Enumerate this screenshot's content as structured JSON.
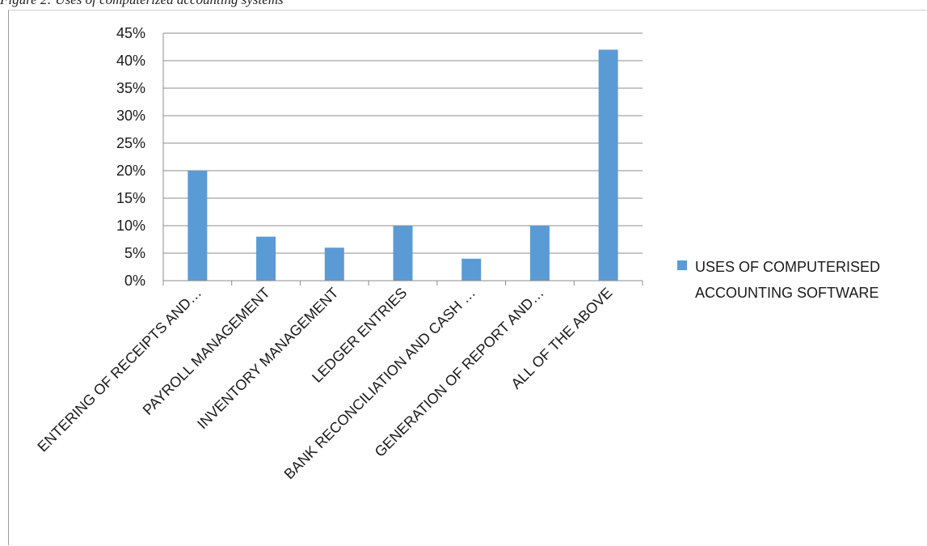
{
  "figure_caption": "Figure 2: Uses of computerized accounting systems",
  "chart_data": {
    "type": "bar",
    "categories": [
      "ENTERING OF RECEIPTS AND…",
      "PAYROLL MANAGEMENT",
      "INVENTORY MANAGEMENT",
      "LEDGER ENTRIES",
      "BANK RECONCILIATION AND CASH …",
      "GENERATION OF REPORT AND…",
      "ALL OF THE ABOVE"
    ],
    "series": [
      {
        "name": "USES OF COMPUTERISED ACCOUNTING SOFTWARE",
        "values": [
          20,
          8,
          6,
          10,
          4,
          10,
          42
        ],
        "color": "#5b9bd5"
      }
    ],
    "y_unit": "%",
    "ylim": [
      0,
      45
    ],
    "y_ticks": [
      "0%",
      "5%",
      "10%",
      "15%",
      "20%",
      "25%",
      "30%",
      "35%",
      "40%",
      "45%"
    ],
    "grid": true,
    "legend_position": "right",
    "legend_lines": [
      "USES OF COMPUTERISED",
      "ACCOUNTING SOFTWARE"
    ]
  }
}
